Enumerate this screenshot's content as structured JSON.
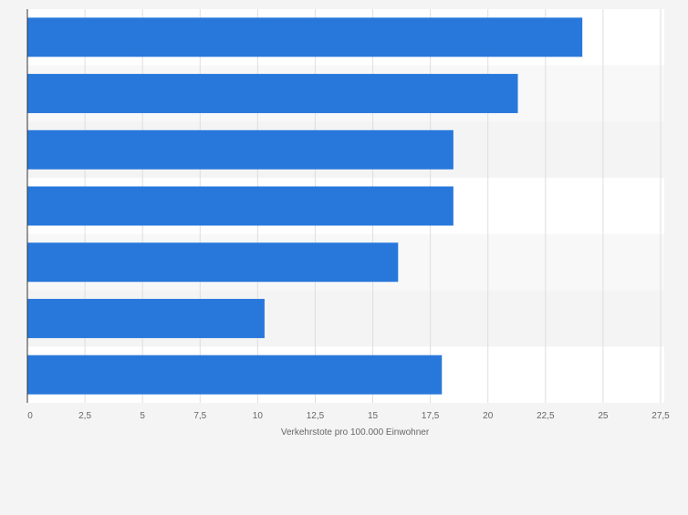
{
  "chart_data": {
    "type": "bar",
    "orientation": "horizontal",
    "categories": [
      "",
      "",
      "",
      "",
      "",
      "",
      ""
    ],
    "values": [
      24.1,
      21.3,
      18.5,
      18.5,
      16.1,
      10.3,
      18.0
    ],
    "title": "",
    "xlabel": "Verkehrstote pro 100.000 Einwohner",
    "ylabel": "",
    "xlim": [
      0,
      27.5
    ],
    "ticks": [
      "0",
      "2,5",
      "5",
      "7,5",
      "10",
      "12,5",
      "15",
      "17,5",
      "20",
      "22,5",
      "25",
      "27,5"
    ],
    "grid": "vertical",
    "bar_color": "#2878dc",
    "band_colors": [
      "#ffffff",
      "#f8f8f8",
      "#f4f4f4"
    ],
    "background_color": "#f4f4f4",
    "legend": "none"
  }
}
